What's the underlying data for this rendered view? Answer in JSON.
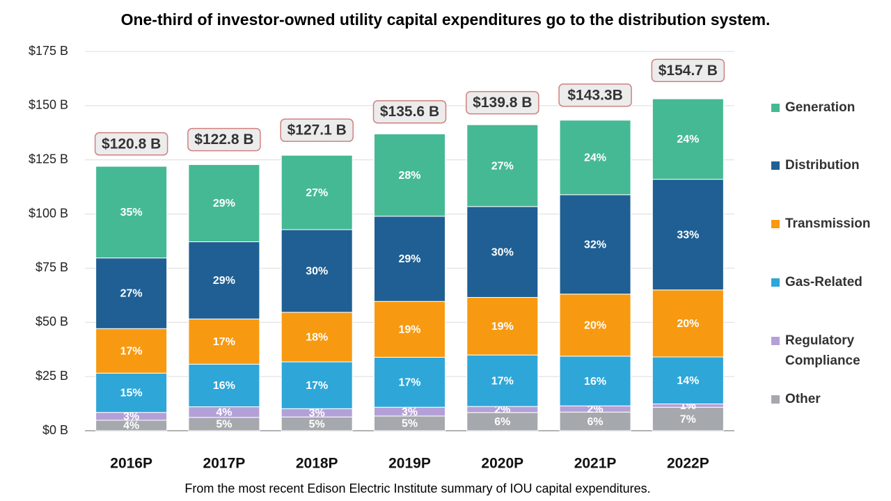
{
  "chart_data": {
    "type": "stacked-bar-percent",
    "title": "One-third of investor-owned utility capital expenditures go to the distribution system.",
    "note": "From the most recent Edison Electric Institute summary of IOU capital expenditures.",
    "categories": [
      "2016P",
      "2017P",
      "2018P",
      "2019P",
      "2020P",
      "2021P",
      "2022P"
    ],
    "totals": [
      120.8,
      122.8,
      127.1,
      135.6,
      139.8,
      143.3,
      154.7
    ],
    "total_labels": [
      "$120.8 B",
      "$122.8 B",
      "$127.1 B",
      "$135.6 B",
      "$139.8 B",
      "$143.3B",
      "$154.7 B"
    ],
    "series": [
      {
        "name": "Generation",
        "color": "#45b994",
        "values": [
          35,
          29,
          27,
          28,
          27,
          24,
          24
        ],
        "value_labels": [
          "35%",
          "29%",
          "27%",
          "28%",
          "27%",
          "24%",
          "24%"
        ]
      },
      {
        "name": "Distribution",
        "color": "#1f5f93",
        "values": [
          27,
          29,
          30,
          29,
          30,
          32,
          33
        ],
        "value_labels": [
          "27%",
          "29%",
          "30%",
          "29%",
          "30%",
          "32%",
          "33%"
        ]
      },
      {
        "name": "Transmission",
        "color": "#f79a11",
        "values": [
          17,
          17,
          18,
          19,
          19,
          20,
          20
        ],
        "value_labels": [
          "17%",
          "17%",
          "18%",
          "19%",
          "19%",
          "20%",
          "20%"
        ]
      },
      {
        "name": "Gas-Related",
        "color": "#2ea6d8",
        "values": [
          15,
          16,
          17,
          17,
          17,
          16,
          14
        ],
        "value_labels": [
          "15%",
          "16%",
          "17%",
          "17%",
          "17%",
          "16%",
          "14%"
        ]
      },
      {
        "name": "Regulatory Compliance",
        "color": "#b4a0d8",
        "values": [
          3,
          4,
          3,
          3,
          2,
          2,
          1
        ],
        "value_labels": [
          "3%",
          "4%",
          "3%",
          "3%",
          "2%",
          "2%",
          "1%"
        ]
      },
      {
        "name": "Other",
        "color": "#a5a9ad",
        "values": [
          4,
          5,
          5,
          5,
          6,
          6,
          7
        ],
        "value_labels": [
          "4%",
          "5%",
          "5%",
          "5%",
          "6%",
          "6%",
          "7%"
        ]
      }
    ],
    "ylim": [
      0,
      175
    ],
    "yticks": [
      {
        "value": 0,
        "label": "$0 B"
      },
      {
        "value": 25,
        "label": "$25 B"
      },
      {
        "value": 50,
        "label": "$50 B"
      },
      {
        "value": 75,
        "label": "$75 B"
      },
      {
        "value": 100,
        "label": "$100 B"
      },
      {
        "value": 125,
        "label": "$125 B"
      },
      {
        "value": 150,
        "label": "$150 B"
      },
      {
        "value": 175,
        "label": "$175 B"
      }
    ],
    "grid": true
  }
}
